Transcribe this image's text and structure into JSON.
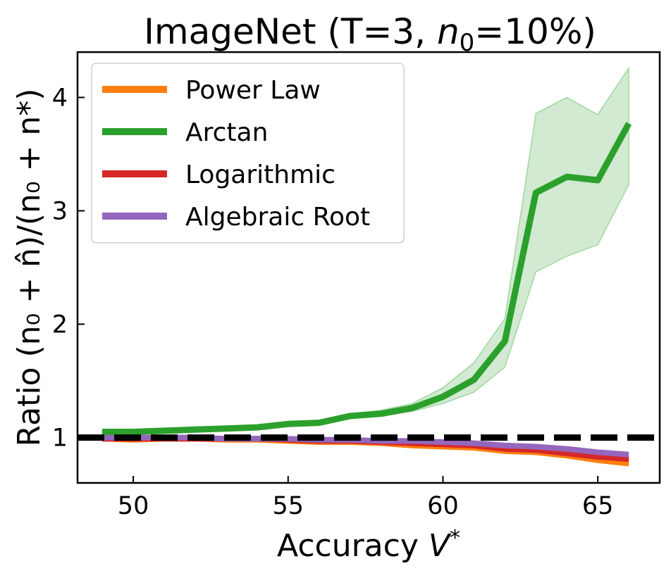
{
  "chart_data": {
    "type": "line",
    "title_main": "ImageNet (T=3, ",
    "title_n": "n",
    "title_sub": "0",
    "title_tail": "=10%)",
    "xlabel_main": "Accuracy ",
    "xlabel_var": "V",
    "xlabel_sup": "*",
    "ylabel": "Ratio (n₀ + n̂)/(n₀ + n*)",
    "xlim": [
      48.2,
      67.0
    ],
    "ylim": [
      0.6,
      4.4
    ],
    "xticks": [
      50,
      55,
      60,
      65
    ],
    "yticks": [
      1,
      2,
      3,
      4
    ],
    "x": [
      49,
      50,
      51,
      52,
      53,
      54,
      55,
      56,
      57,
      58,
      59,
      60,
      61,
      62,
      63,
      64,
      65,
      66
    ],
    "series": [
      {
        "name": "Power Law",
        "color": "#ff7f0e",
        "values": [
          0.99,
          0.98,
          0.99,
          0.99,
          0.98,
          0.98,
          0.97,
          0.96,
          0.96,
          0.95,
          0.93,
          0.92,
          0.91,
          0.88,
          0.87,
          0.84,
          0.8,
          0.77
        ]
      },
      {
        "name": "Arctan",
        "color": "#2ca02c",
        "values": [
          1.05,
          1.05,
          1.06,
          1.07,
          1.08,
          1.09,
          1.12,
          1.13,
          1.19,
          1.21,
          1.26,
          1.36,
          1.51,
          1.85,
          3.16,
          3.3,
          3.27,
          3.77
        ],
        "band_low": [
          1.04,
          1.04,
          1.05,
          1.06,
          1.07,
          1.08,
          1.1,
          1.12,
          1.17,
          1.19,
          1.23,
          1.3,
          1.4,
          1.62,
          2.46,
          2.6,
          2.7,
          3.23
        ],
        "band_high": [
          1.06,
          1.06,
          1.07,
          1.08,
          1.09,
          1.1,
          1.13,
          1.15,
          1.21,
          1.24,
          1.3,
          1.44,
          1.66,
          2.05,
          3.86,
          4.0,
          3.85,
          4.26
        ]
      },
      {
        "name": "Logarithmic",
        "color": "#d62728",
        "values": [
          0.99,
          0.99,
          0.99,
          0.99,
          0.99,
          0.99,
          0.98,
          0.97,
          0.97,
          0.96,
          0.95,
          0.94,
          0.93,
          0.9,
          0.89,
          0.86,
          0.83,
          0.81
        ]
      },
      {
        "name": "Algebraic Root",
        "color": "#9467bd",
        "values": [
          1.0,
          1.0,
          1.0,
          1.0,
          0.99,
          0.99,
          0.99,
          0.98,
          0.98,
          0.97,
          0.97,
          0.96,
          0.95,
          0.93,
          0.92,
          0.9,
          0.87,
          0.85
        ]
      }
    ],
    "reference_line": {
      "y": 1,
      "color": "#000000",
      "style": "dashed"
    },
    "legend_position": "top-left",
    "grid": false
  }
}
